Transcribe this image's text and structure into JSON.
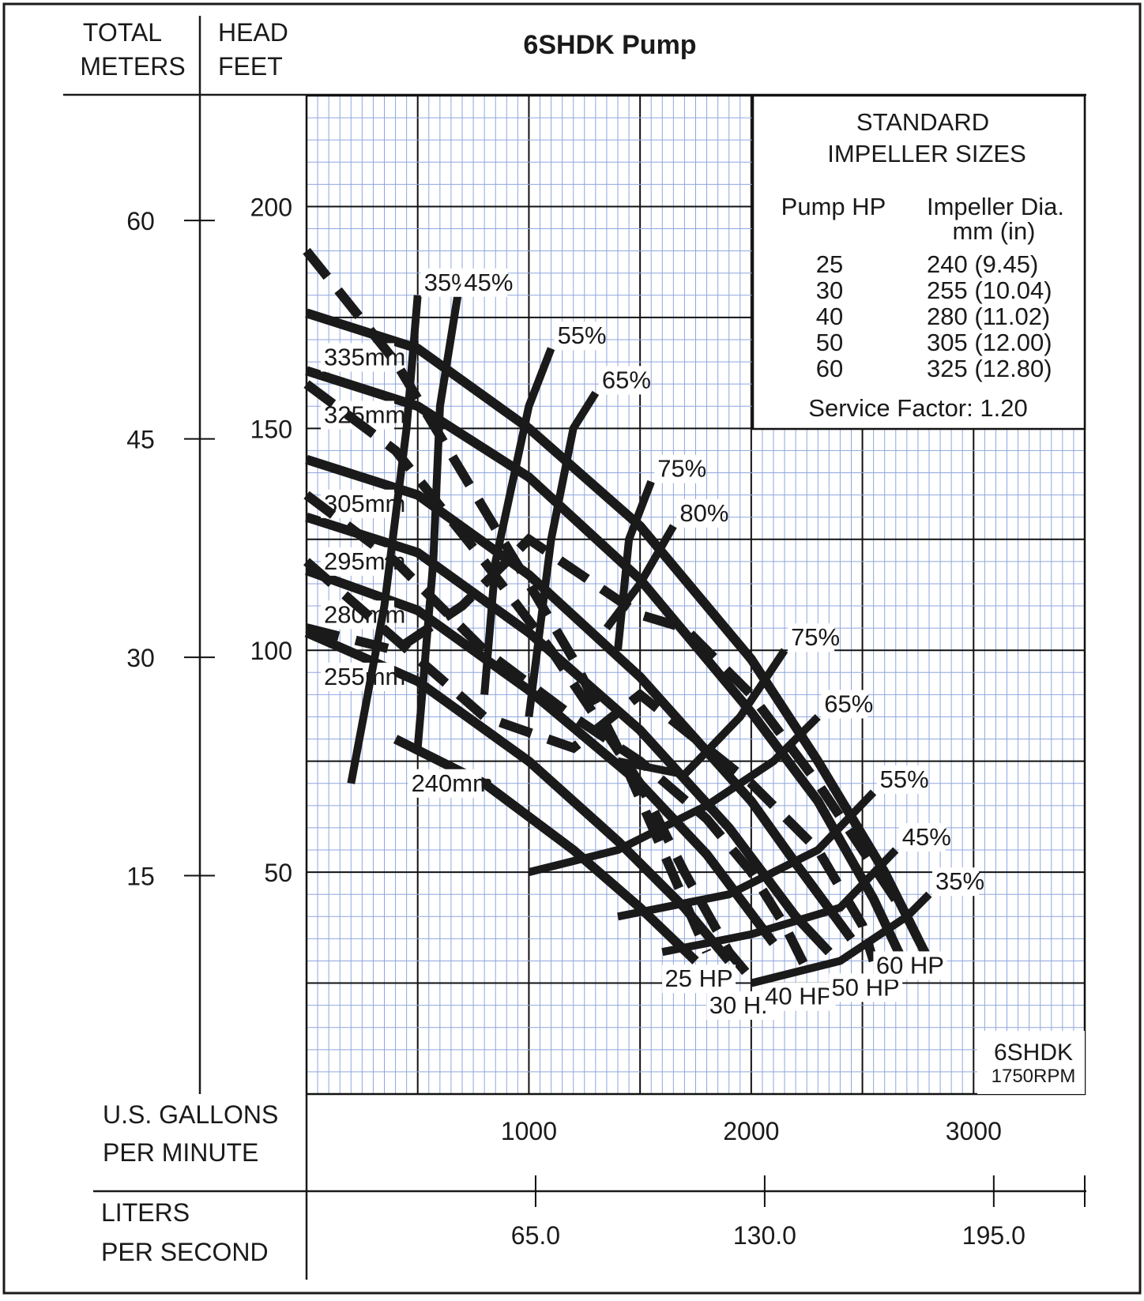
{
  "chart_data": {
    "type": "line",
    "title": "6SHDK Pump",
    "model_label": "6SHDK",
    "speed_label": "1750RPM",
    "y_axes": {
      "meters": {
        "label_line1": "TOTAL",
        "label_line2": "METERS",
        "ticks": [
          {
            "value": 60,
            "label": "60"
          },
          {
            "value": 45,
            "label": "45"
          },
          {
            "value": 30,
            "label": "30"
          },
          {
            "value": 15,
            "label": "15"
          }
        ]
      },
      "feet": {
        "label_line1": "HEAD",
        "label_line2": "FEET",
        "ticks": [
          {
            "value": 200,
            "label": "200"
          },
          {
            "value": 150,
            "label": "150"
          },
          {
            "value": 100,
            "label": "100"
          },
          {
            "value": 50,
            "label": "50"
          }
        ],
        "range": [
          0,
          225
        ]
      }
    },
    "x_axes": {
      "gpm": {
        "label_line1": "U.S. GALLONS",
        "label_line2": "PER MINUTE",
        "ticks": [
          {
            "value": 1000,
            "label": "1000"
          },
          {
            "value": 2000,
            "label": "2000"
          },
          {
            "value": 3000,
            "label": "3000"
          }
        ],
        "range": [
          0,
          3500
        ]
      },
      "lps": {
        "label_line1": "LITERS",
        "label_line2": "PER SECOND",
        "ticks": [
          {
            "value": 65,
            "label": "65.0"
          },
          {
            "value": 130,
            "label": "130.0"
          },
          {
            "value": 195,
            "label": "195.0"
          }
        ]
      }
    },
    "impeller_curves": [
      {
        "name": "335mm",
        "points": [
          [
            0,
            176
          ],
          [
            500,
            168
          ],
          [
            1000,
            150
          ],
          [
            1500,
            128
          ],
          [
            2000,
            98
          ],
          [
            2300,
            75
          ],
          [
            2600,
            50
          ],
          [
            2800,
            30
          ]
        ]
      },
      {
        "name": "325mm",
        "points": [
          [
            0,
            163
          ],
          [
            500,
            155
          ],
          [
            1000,
            139
          ],
          [
            1500,
            116
          ],
          [
            2000,
            86
          ],
          [
            2300,
            66
          ],
          [
            2550,
            44
          ],
          [
            2700,
            28
          ]
        ]
      },
      {
        "name": "305mm",
        "points": [
          [
            0,
            143
          ],
          [
            500,
            135
          ],
          [
            1000,
            117
          ],
          [
            1500,
            94
          ],
          [
            2000,
            66
          ],
          [
            2200,
            52
          ],
          [
            2450,
            35
          ]
        ]
      },
      {
        "name": "295mm",
        "points": [
          [
            0,
            130
          ],
          [
            500,
            122
          ],
          [
            1000,
            104
          ],
          [
            1500,
            82
          ],
          [
            1900,
            60
          ],
          [
            2200,
            40
          ],
          [
            2350,
            32
          ]
        ]
      },
      {
        "name": "280mm",
        "points": [
          [
            0,
            118
          ],
          [
            500,
            109
          ],
          [
            1000,
            91
          ],
          [
            1500,
            70
          ],
          [
            1800,
            54
          ],
          [
            2100,
            34
          ]
        ]
      },
      {
        "name": "255mm",
        "points": [
          [
            0,
            104
          ],
          [
            500,
            93
          ],
          [
            1000,
            75
          ],
          [
            1400,
            57
          ],
          [
            1700,
            42
          ],
          [
            1900,
            30
          ]
        ]
      },
      {
        "name": "240mm",
        "points": [
          [
            400,
            80
          ],
          [
            800,
            70
          ],
          [
            1200,
            55
          ],
          [
            1500,
            42
          ],
          [
            1750,
            30
          ]
        ]
      }
    ],
    "hp_curves": [
      {
        "name": "25 HP",
        "points": [
          [
            0,
            190
          ],
          [
            400,
            165
          ],
          [
            700,
            140
          ],
          [
            1000,
            115
          ],
          [
            1200,
            98
          ],
          [
            1400,
            78
          ],
          [
            1600,
            55
          ],
          [
            1800,
            32
          ]
        ]
      },
      {
        "name": "30 HP",
        "points": [
          [
            0,
            160
          ],
          [
            400,
            145
          ],
          [
            800,
            120
          ],
          [
            1100,
            100
          ],
          [
            1300,
            85
          ],
          [
            1500,
            70
          ],
          [
            1700,
            50
          ],
          [
            1900,
            32
          ],
          [
            2000,
            26
          ]
        ]
      },
      {
        "name": "40 HP",
        "points": [
          [
            0,
            135
          ],
          [
            400,
            120
          ],
          [
            800,
            100
          ],
          [
            1200,
            85
          ],
          [
            1500,
            75
          ],
          [
            1800,
            62
          ],
          [
            2000,
            50
          ],
          [
            2150,
            38
          ],
          [
            2250,
            28
          ]
        ]
      },
      {
        "name": "50 HP",
        "points": [
          [
            0,
            120
          ],
          [
            800,
            85
          ],
          [
            1200,
            78
          ],
          [
            1500,
            90
          ],
          [
            2000,
            70
          ],
          [
            2300,
            55
          ],
          [
            2500,
            38
          ],
          [
            2550,
            30
          ]
        ]
      },
      {
        "name": "60 HP",
        "points": [
          [
            0,
            105
          ],
          [
            400,
            100
          ],
          [
            700,
            110
          ],
          [
            1000,
            125
          ],
          [
            1500,
            108
          ],
          [
            1700,
            105
          ],
          [
            2000,
            90
          ],
          [
            2300,
            70
          ],
          [
            2500,
            55
          ],
          [
            2700,
            40
          ],
          [
            2750,
            35
          ]
        ]
      }
    ],
    "efficiency_curves": [
      {
        "name": "35%",
        "points": [
          [
            200,
            70
          ],
          [
            350,
            110
          ],
          [
            450,
            150
          ],
          [
            500,
            180
          ]
        ]
      },
      {
        "name": "45%",
        "points": [
          [
            500,
            78
          ],
          [
            570,
            120
          ],
          [
            600,
            155
          ],
          [
            680,
            180
          ]
        ]
      },
      {
        "name": "55%",
        "points": [
          [
            800,
            90
          ],
          [
            850,
            120
          ],
          [
            1000,
            155
          ],
          [
            1100,
            168
          ]
        ]
      },
      {
        "name": "65%",
        "points": [
          [
            1000,
            85
          ],
          [
            1100,
            125
          ],
          [
            1200,
            150
          ],
          [
            1300,
            158
          ]
        ]
      },
      {
        "name": "75%",
        "points": [
          [
            1400,
            100
          ],
          [
            1450,
            125
          ],
          [
            1550,
            138
          ]
        ]
      },
      {
        "name": "80%",
        "points": [
          [
            1350,
            105
          ],
          [
            1500,
            115
          ],
          [
            1650,
            128
          ]
        ]
      },
      {
        "name": "75%",
        "points": [
          [
            1400,
            75
          ],
          [
            1700,
            72
          ],
          [
            1950,
            85
          ],
          [
            2150,
            100
          ]
        ]
      },
      {
        "name": "65%",
        "points": [
          [
            1000,
            50
          ],
          [
            1400,
            55
          ],
          [
            1800,
            65
          ],
          [
            2100,
            75
          ],
          [
            2300,
            85
          ]
        ]
      },
      {
        "name": "55%",
        "points": [
          [
            1400,
            40
          ],
          [
            1900,
            45
          ],
          [
            2300,
            55
          ],
          [
            2550,
            68
          ]
        ]
      },
      {
        "name": "45%",
        "points": [
          [
            1600,
            32
          ],
          [
            2000,
            36
          ],
          [
            2400,
            42
          ],
          [
            2650,
            55
          ]
        ]
      },
      {
        "name": "35%",
        "points": [
          [
            2000,
            25
          ],
          [
            2400,
            30
          ],
          [
            2700,
            40
          ],
          [
            2800,
            45
          ]
        ]
      }
    ],
    "grid": true
  },
  "impeller_table": {
    "title_line1": "STANDARD",
    "title_line2": "IMPELLER SIZES",
    "col1_header": "Pump HP",
    "col2_header_line1": "Impeller Dia.",
    "col2_header_line2": "mm (in)",
    "rows": [
      {
        "hp": "25",
        "dia": "240 (9.45)"
      },
      {
        "hp": "30",
        "dia": "255 (10.04)"
      },
      {
        "hp": "40",
        "dia": "280 (11.02)"
      },
      {
        "hp": "50",
        "dia": "305 (12.00)"
      },
      {
        "hp": "60",
        "dia": "325 (12.80)"
      }
    ],
    "service_factor": "Service Factor: 1.20"
  }
}
